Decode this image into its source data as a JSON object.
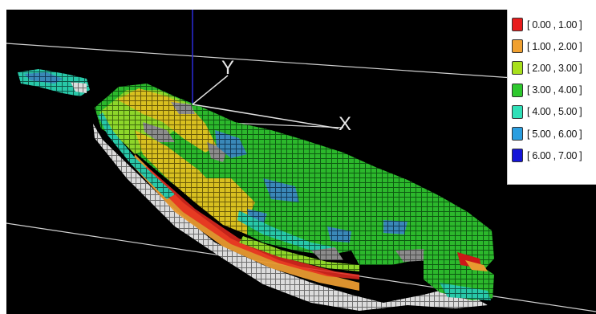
{
  "viewport": {
    "axes": {
      "x_label": "X",
      "y_label": "Y"
    }
  },
  "legend": {
    "items": [
      {
        "label": "[ 0.00 , 1.00 ]",
        "color": "#e81c1c"
      },
      {
        "label": "[ 1.00 , 2.00 ]",
        "color": "#f0a030"
      },
      {
        "label": "[ 2.00 , 3.00 ]",
        "color": "#a8e01c"
      },
      {
        "label": "[ 3.00 , 4.00 ]",
        "color": "#2ec82e"
      },
      {
        "label": "[ 4.00 , 5.00 ]",
        "color": "#30e0b8"
      },
      {
        "label": "[ 5.00 , 6.00 ]",
        "color": "#2a9ee0"
      },
      {
        "label": "[ 6.00 , 7.00 ]",
        "color": "#1414d8"
      }
    ]
  },
  "palette": {
    "background": "#000000",
    "side_wall": "#c8c8c8",
    "outcrop": "#8a8a8a"
  }
}
